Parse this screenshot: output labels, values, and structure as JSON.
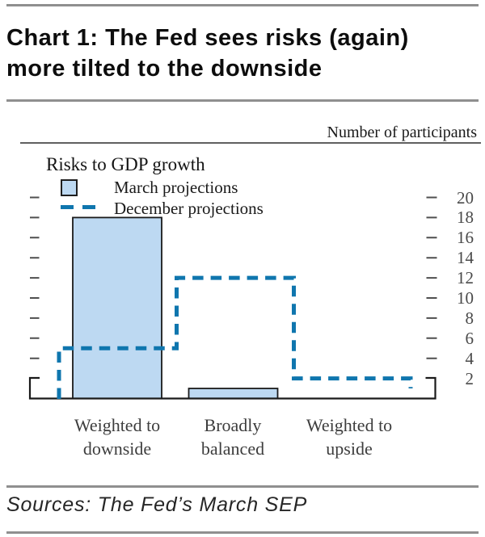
{
  "header": {
    "title_line1": "Chart 1: The Fed sees risks (again)",
    "title_line2": "more tilted to the downside"
  },
  "footer": {
    "sources": "Sources: The Fed’s March SEP"
  },
  "chart_data": {
    "type": "bar",
    "title": "Risks to GDP growth",
    "axis_note": "Number of participants",
    "categories": [
      [
        "Weighted to",
        "downside"
      ],
      [
        "Broadly",
        "balanced"
      ],
      [
        "Weighted to",
        "upside"
      ]
    ],
    "series": [
      {
        "name": "March projections",
        "type": "bar",
        "values": [
          18,
          1,
          0
        ],
        "color": "#bdd9f2"
      },
      {
        "name": "December projections",
        "type": "step-line",
        "values": [
          5,
          12,
          2
        ],
        "color": "#0f76ae"
      }
    ],
    "yticks": [
      20,
      18,
      16,
      14,
      12,
      10,
      8,
      6,
      4,
      2
    ],
    "ylim": [
      0,
      21
    ],
    "ylabel": "",
    "xlabel": "",
    "grid": false,
    "legend_position": "top-left"
  },
  "colors": {
    "bar_fill": "#bdd9f2",
    "bar_border": "#1a1a1a",
    "line_blue": "#0f76ae",
    "rule_gray": "#8f8f8f",
    "axis_black": "#1a1a1a",
    "tick_gray": "#4f4f4f"
  }
}
